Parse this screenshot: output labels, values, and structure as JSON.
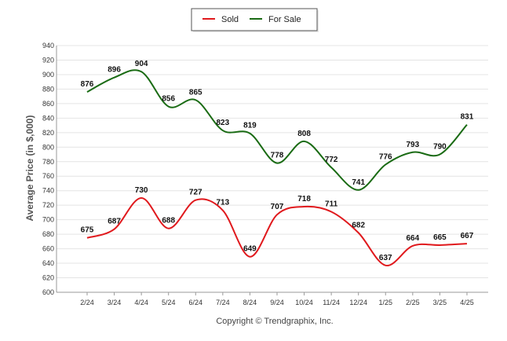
{
  "chart_data": {
    "type": "line",
    "ylabel": "Average Price (in $,000)",
    "xlabel": "",
    "ylim": [
      600,
      940
    ],
    "yticks": [
      600,
      620,
      640,
      660,
      680,
      700,
      720,
      740,
      760,
      780,
      800,
      820,
      840,
      860,
      880,
      900,
      920,
      940
    ],
    "grid": true,
    "legend_position": "top-center",
    "categories": [
      "2/24",
      "3/24",
      "4/24",
      "5/24",
      "6/24",
      "7/24",
      "8/24",
      "9/24",
      "10/24",
      "11/24",
      "12/24",
      "1/25",
      "2/25",
      "3/25",
      "4/25"
    ],
    "series": [
      {
        "name": "Sold",
        "color": "#e0191d",
        "values": [
          675,
          687,
          730,
          688,
          727,
          713,
          649,
          707,
          718,
          711,
          682,
          637,
          664,
          665,
          667
        ]
      },
      {
        "name": "For Sale",
        "color": "#1a6b14",
        "values": [
          876,
          896,
          904,
          856,
          865,
          823,
          819,
          778,
          808,
          772,
          741,
          776,
          793,
          790,
          831
        ]
      }
    ]
  },
  "footer": {
    "copyright": "Copyright © Trendgraphix, Inc."
  }
}
